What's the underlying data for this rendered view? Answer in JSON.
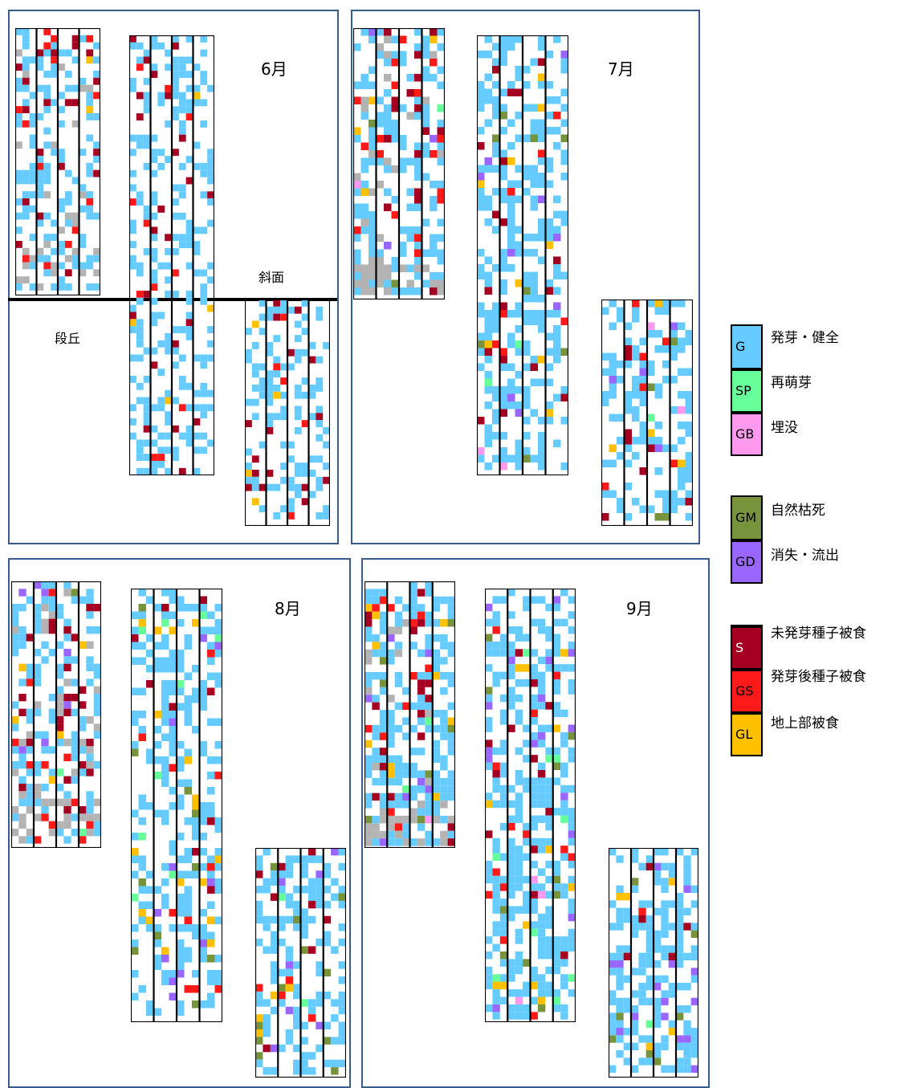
{
  "panels": [
    {
      "month": "6月",
      "labels": {
        "slope": "斜面",
        "terrace": "段丘"
      }
    },
    {
      "month": "7月"
    },
    {
      "month": "8月"
    },
    {
      "month": "9月"
    }
  ],
  "legend": {
    "groups": [
      [
        {
          "code": "G",
          "label": "発芽・健全",
          "color": "#66ccff"
        },
        {
          "code": "SP",
          "label": "再萌芽",
          "color": "#66ff99"
        },
        {
          "code": "GB",
          "label": "埋没",
          "color": "#ff99ee"
        }
      ],
      [
        {
          "code": "GM",
          "label": "自然枯死",
          "color": "#77933c"
        },
        {
          "code": "GD",
          "label": "消失・流出",
          "color": "#9966ff"
        }
      ],
      [
        {
          "code": "S",
          "label": "未発芽種子被食",
          "color": "#a50021"
        },
        {
          "code": "GS",
          "label": "発芽後種子被食",
          "color": "#ff1a1a"
        },
        {
          "code": "GL",
          "label": "地上部被食",
          "color": "#ffc000"
        }
      ]
    ],
    "gray_color": "#b3b3b3"
  }
}
